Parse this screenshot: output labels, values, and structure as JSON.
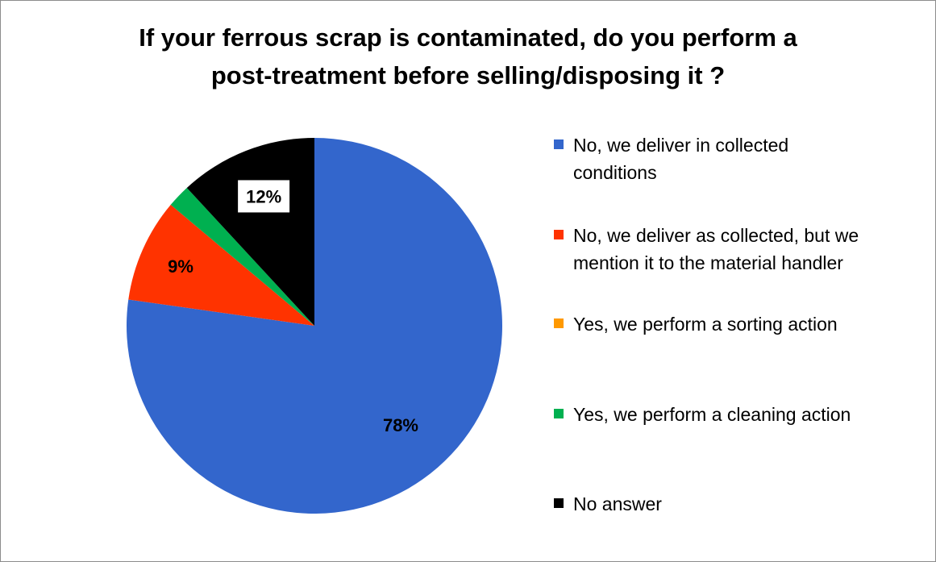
{
  "chart_data": {
    "type": "pie",
    "title_lines": [
      "If your ferrous scrap is contaminated, do you perform a",
      "post-treatment before selling/disposing it ?"
    ],
    "slices": [
      {
        "name_lines": [
          "No, we deliver in collected",
          "conditions"
        ],
        "value": 78,
        "label": "78%",
        "color": "#3366CC"
      },
      {
        "name_lines": [
          "No, we deliver as collected, but we",
          "mention it to the material handler"
        ],
        "value": 9,
        "label": "9%",
        "color": "#FF3300"
      },
      {
        "name_lines": [
          "Yes, we perform a sorting action"
        ],
        "value": 0,
        "label": "",
        "color": "#FF9900"
      },
      {
        "name_lines": [
          "Yes, we perform a cleaning action"
        ],
        "value": 2,
        "label": "",
        "color": "#00B050"
      },
      {
        "name_lines": [
          "No answer"
        ],
        "value": 12,
        "label": "12%",
        "color": "#000000"
      }
    ],
    "start_angle": "12 o'clock",
    "direction": "clockwise",
    "legend_position": "right"
  }
}
